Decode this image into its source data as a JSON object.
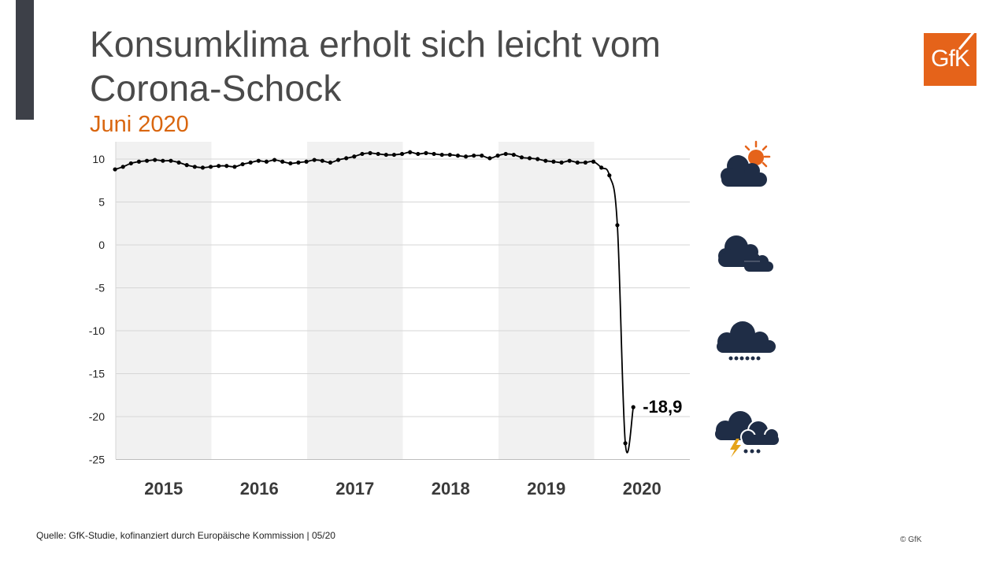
{
  "title": "Konsumklima erholt sich leicht vom Corona-Schock",
  "subtitle": "Juni 2020",
  "logo_text": "GfK",
  "source": "Quelle: GfK-Studie, kofinanziert durch Europäische Kommission | 05/20",
  "copyright": "© GfK",
  "colors": {
    "accent": "#d9660f",
    "logo": "#e5631a",
    "line": "#000000",
    "band": "#f1f1f1",
    "icon": "#1f2d46"
  },
  "weather_icons": [
    "sun-cloud-icon",
    "cloudy-icon",
    "rain-cloud-icon",
    "thunderstorm-icon"
  ],
  "chart_data": {
    "type": "line",
    "title": "",
    "xlabel": "",
    "ylabel": "",
    "ylim": [
      -25,
      12
    ],
    "y_ticks": [
      10,
      5,
      0,
      -5,
      -10,
      -15,
      -20,
      -25
    ],
    "y_tick_labels": [
      "10",
      "5",
      "0",
      "-5",
      "-10",
      "-15",
      "-20",
      "-25"
    ],
    "year_labels": [
      "2015",
      "2016",
      "2017",
      "2018",
      "2019",
      "2020"
    ],
    "shaded_years": [
      "2015",
      "2017",
      "2019"
    ],
    "grid": true,
    "annotation": {
      "text": "-18,9",
      "value": -18.9
    },
    "series": [
      {
        "values": [
          8.8,
          9.1,
          9.5,
          9.7,
          9.8,
          9.9,
          9.8,
          9.8,
          9.6,
          9.3,
          9.1,
          9.0,
          9.1,
          9.2,
          9.2,
          9.1,
          9.4,
          9.6,
          9.8,
          9.7,
          9.9,
          9.7,
          9.5,
          9.6,
          9.7,
          9.9,
          9.8,
          9.6,
          9.9,
          10.1,
          10.3,
          10.6,
          10.7,
          10.6,
          10.5,
          10.5,
          10.6,
          10.8,
          10.6,
          10.7,
          10.6,
          10.5,
          10.5,
          10.4,
          10.3,
          10.4,
          10.4,
          10.1,
          10.4,
          10.6,
          10.5,
          10.2,
          10.1,
          10.0,
          9.8,
          9.7,
          9.6,
          9.8,
          9.6,
          9.6,
          9.7,
          9.0,
          8.1,
          2.3,
          -23.1,
          -18.9
        ]
      }
    ]
  }
}
